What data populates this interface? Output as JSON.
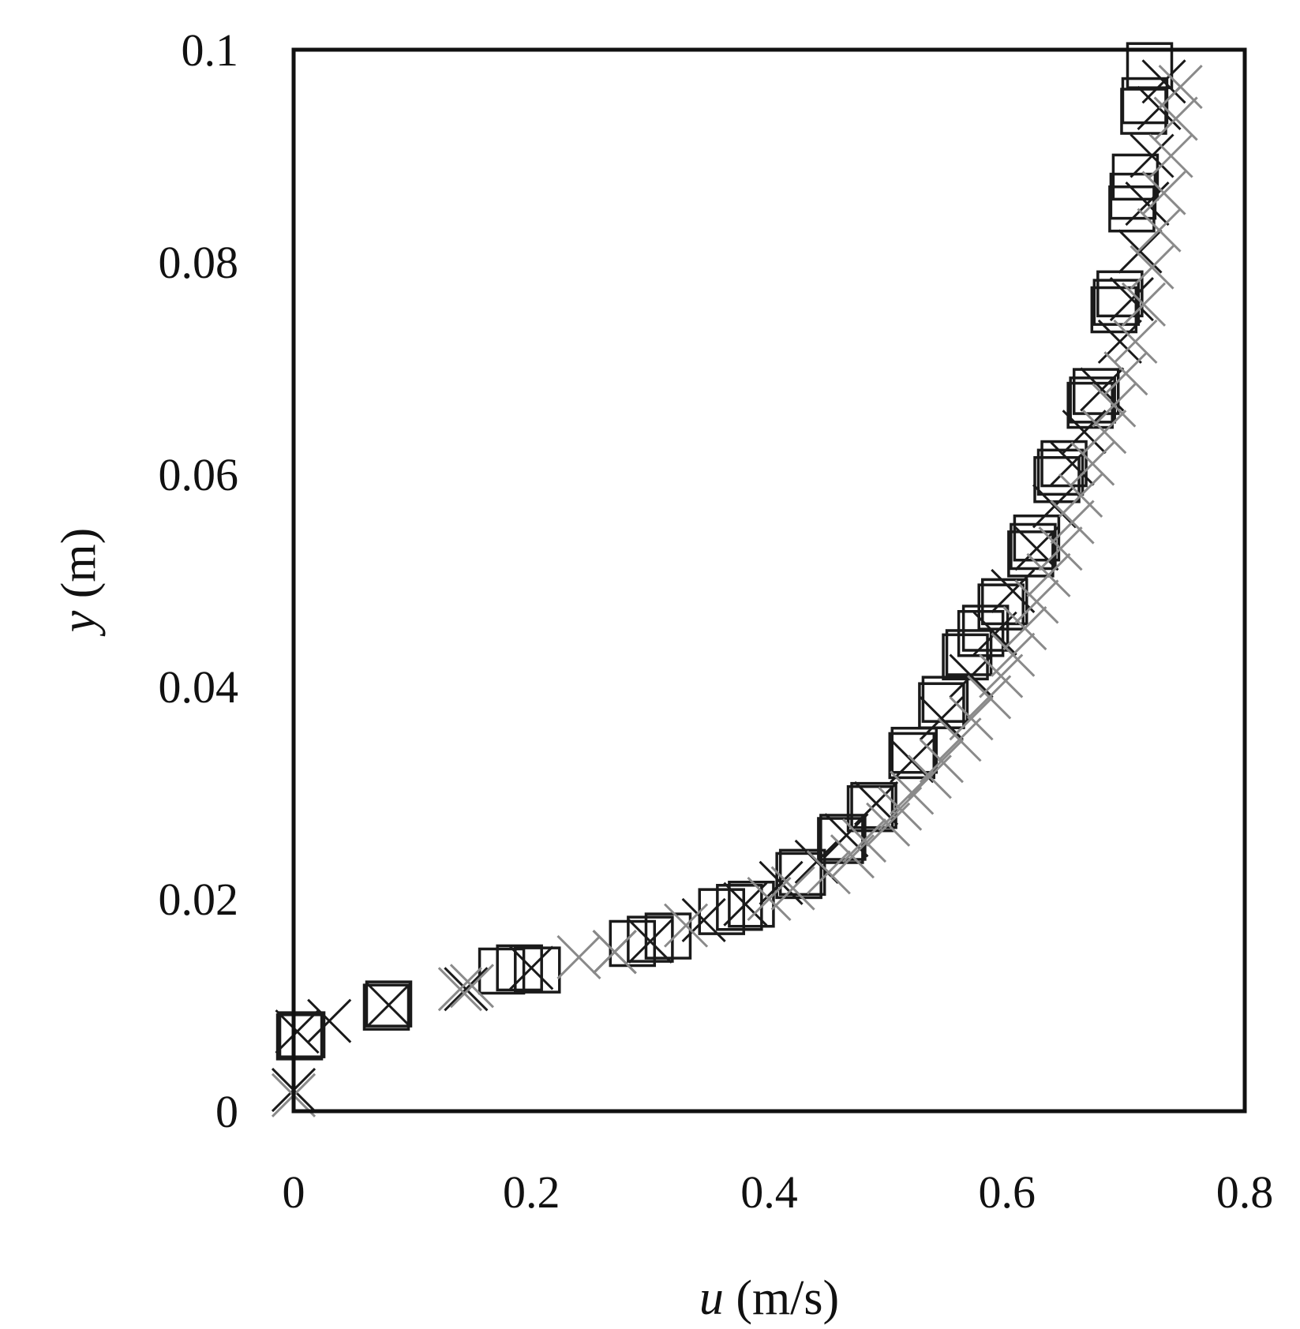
{
  "chart_data": {
    "type": "scatter",
    "title": "",
    "xlabel": {
      "var": "u",
      "unit": " (m/s)"
    },
    "ylabel": {
      "var": "y",
      "unit": " (m)"
    },
    "xlim": [
      0,
      0.8
    ],
    "ylim": [
      0,
      0.1
    ],
    "xticks": [
      {
        "value": 0,
        "label": "0"
      },
      {
        "value": 0.2,
        "label": "0.2"
      },
      {
        "value": 0.4,
        "label": "0.4"
      },
      {
        "value": 0.6,
        "label": "0.6"
      },
      {
        "value": 0.8,
        "label": "0.8"
      }
    ],
    "yticks": [
      {
        "value": 0,
        "label": "0"
      },
      {
        "value": 0.02,
        "label": "0.02"
      },
      {
        "value": 0.04,
        "label": "0.04"
      },
      {
        "value": 0.06,
        "label": "0.06"
      },
      {
        "value": 0.08,
        "label": "0.08"
      },
      {
        "value": 0.1,
        "label": "0.1"
      }
    ],
    "grid": false,
    "legend": "none",
    "series": [
      {
        "marker": "square",
        "color": "#1a1a1a",
        "points": [
          [
            0.005,
            0.007
          ],
          [
            0.007,
            0.0072
          ],
          [
            0.078,
            0.0098
          ],
          [
            0.08,
            0.0101
          ],
          [
            0.175,
            0.0132
          ],
          [
            0.19,
            0.0135
          ],
          [
            0.205,
            0.0133
          ],
          [
            0.285,
            0.0158
          ],
          [
            0.3,
            0.0162
          ],
          [
            0.315,
            0.0165
          ],
          [
            0.36,
            0.0188
          ],
          [
            0.375,
            0.0192
          ],
          [
            0.385,
            0.0195
          ],
          [
            0.425,
            0.0222
          ],
          [
            0.428,
            0.0225
          ],
          [
            0.46,
            0.0255
          ],
          [
            0.462,
            0.0258
          ],
          [
            0.485,
            0.0285
          ],
          [
            0.488,
            0.0288
          ],
          [
            0.52,
            0.0335
          ],
          [
            0.522,
            0.034
          ],
          [
            0.545,
            0.0382
          ],
          [
            0.548,
            0.0388
          ],
          [
            0.565,
            0.0428
          ],
          [
            0.568,
            0.0432
          ],
          [
            0.578,
            0.045
          ],
          [
            0.582,
            0.0455
          ],
          [
            0.595,
            0.0475
          ],
          [
            0.598,
            0.048
          ],
          [
            0.62,
            0.0525
          ],
          [
            0.622,
            0.0532
          ],
          [
            0.625,
            0.054
          ],
          [
            0.642,
            0.0595
          ],
          [
            0.645,
            0.0602
          ],
          [
            0.648,
            0.061
          ],
          [
            0.67,
            0.0665
          ],
          [
            0.672,
            0.067
          ],
          [
            0.675,
            0.0678
          ],
          [
            0.69,
            0.0755
          ],
          [
            0.692,
            0.0762
          ],
          [
            0.695,
            0.077
          ],
          [
            0.705,
            0.085
          ],
          [
            0.706,
            0.0862
          ],
          [
            0.708,
            0.088
          ],
          [
            0.715,
            0.0942
          ],
          [
            0.716,
            0.0952
          ],
          [
            0.72,
            0.0985
          ]
        ]
      },
      {
        "marker": "cross",
        "color": "#1a1a1a",
        "points": [
          [
            0.0,
            0.002
          ],
          [
            0.003,
            0.0075
          ],
          [
            0.03,
            0.0085
          ],
          [
            0.08,
            0.01
          ],
          [
            0.145,
            0.0115
          ],
          [
            0.2,
            0.0135
          ],
          [
            0.27,
            0.015
          ],
          [
            0.3,
            0.016
          ],
          [
            0.345,
            0.018
          ],
          [
            0.38,
            0.0195
          ],
          [
            0.41,
            0.0215
          ],
          [
            0.44,
            0.0235
          ],
          [
            0.465,
            0.026
          ],
          [
            0.49,
            0.029
          ],
          [
            0.52,
            0.033
          ],
          [
            0.545,
            0.037
          ],
          [
            0.57,
            0.041
          ],
          [
            0.59,
            0.045
          ],
          [
            0.605,
            0.049
          ],
          [
            0.625,
            0.053
          ],
          [
            0.64,
            0.057
          ],
          [
            0.655,
            0.061
          ],
          [
            0.665,
            0.064
          ],
          [
            0.68,
            0.068
          ],
          [
            0.695,
            0.0725
          ],
          [
            0.705,
            0.0765
          ],
          [
            0.712,
            0.081
          ],
          [
            0.718,
            0.0855
          ],
          [
            0.722,
            0.09
          ],
          [
            0.728,
            0.0945
          ],
          [
            0.732,
            0.097
          ]
        ]
      },
      {
        "marker": "cross",
        "color": "#8a8a8a",
        "points": [
          [
            0.0,
            0.0015
          ],
          [
            0.14,
            0.0115
          ],
          [
            0.15,
            0.0118
          ],
          [
            0.24,
            0.0145
          ],
          [
            0.27,
            0.015
          ],
          [
            0.33,
            0.0175
          ],
          [
            0.4,
            0.02
          ],
          [
            0.42,
            0.021
          ],
          [
            0.45,
            0.0225
          ],
          [
            0.47,
            0.024
          ],
          [
            0.48,
            0.0255
          ],
          [
            0.5,
            0.027
          ],
          [
            0.51,
            0.0285
          ],
          [
            0.52,
            0.03
          ],
          [
            0.535,
            0.0315
          ],
          [
            0.545,
            0.033
          ],
          [
            0.56,
            0.035
          ],
          [
            0.57,
            0.037
          ],
          [
            0.585,
            0.039
          ],
          [
            0.595,
            0.041
          ],
          [
            0.605,
            0.043
          ],
          [
            0.615,
            0.0455
          ],
          [
            0.625,
            0.048
          ],
          [
            0.635,
            0.0505
          ],
          [
            0.645,
            0.053
          ],
          [
            0.655,
            0.0555
          ],
          [
            0.662,
            0.058
          ],
          [
            0.672,
            0.061
          ],
          [
            0.682,
            0.064
          ],
          [
            0.69,
            0.0665
          ],
          [
            0.7,
            0.0695
          ],
          [
            0.708,
            0.0725
          ],
          [
            0.715,
            0.076
          ],
          [
            0.722,
            0.0795
          ],
          [
            0.728,
            0.083
          ],
          [
            0.732,
            0.0865
          ],
          [
            0.738,
            0.09
          ],
          [
            0.742,
            0.0935
          ],
          [
            0.746,
            0.0965
          ]
        ]
      }
    ]
  }
}
